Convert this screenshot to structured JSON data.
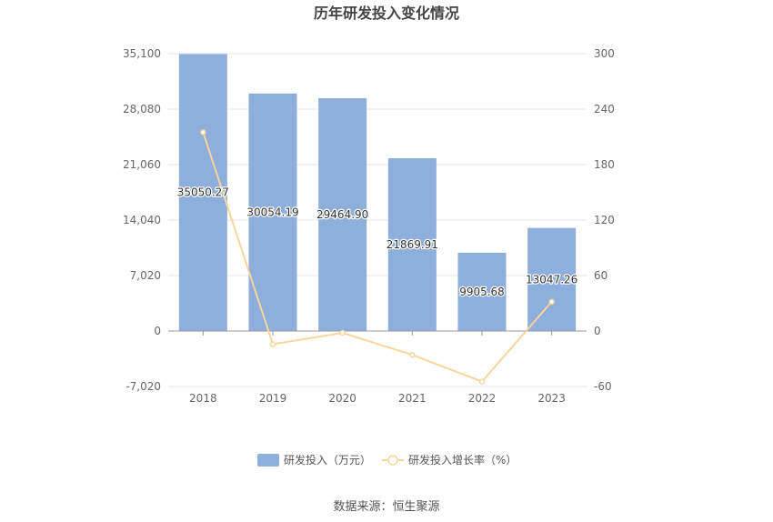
{
  "chart_data": {
    "type": "bar",
    "title": "历年研发投入变化情况",
    "categories": [
      "2018",
      "2019",
      "2020",
      "2021",
      "2022",
      "2023"
    ],
    "series": [
      {
        "name": "研发投入（万元）",
        "type": "bar",
        "axis": "left",
        "color": "#8eaedb",
        "values": [
          35050.27,
          30054.19,
          29464.9,
          21869.91,
          9905.68,
          13047.26
        ],
        "labels": [
          "35050.27",
          "30054.19",
          "29464.90",
          "21869.91",
          "9905.68",
          "13047.26"
        ]
      },
      {
        "name": "研发投入增长率（%）",
        "type": "line",
        "axis": "right",
        "color": "#f8d59c",
        "values": [
          215,
          -14.3,
          -2.0,
          -25.8,
          -54.7,
          31.7
        ]
      }
    ],
    "y_left": {
      "min": -7020,
      "max": 35100,
      "ticks": [
        "35,100",
        "28,080",
        "21,060",
        "14,040",
        "7,020",
        "0",
        "-7,020"
      ]
    },
    "y_right": {
      "min": -60,
      "max": 300,
      "ticks": [
        "300",
        "240",
        "180",
        "120",
        "60",
        "0",
        "-60"
      ]
    },
    "grid": true,
    "legend": "bottom-center",
    "source": "数据来源：恒生聚源"
  }
}
